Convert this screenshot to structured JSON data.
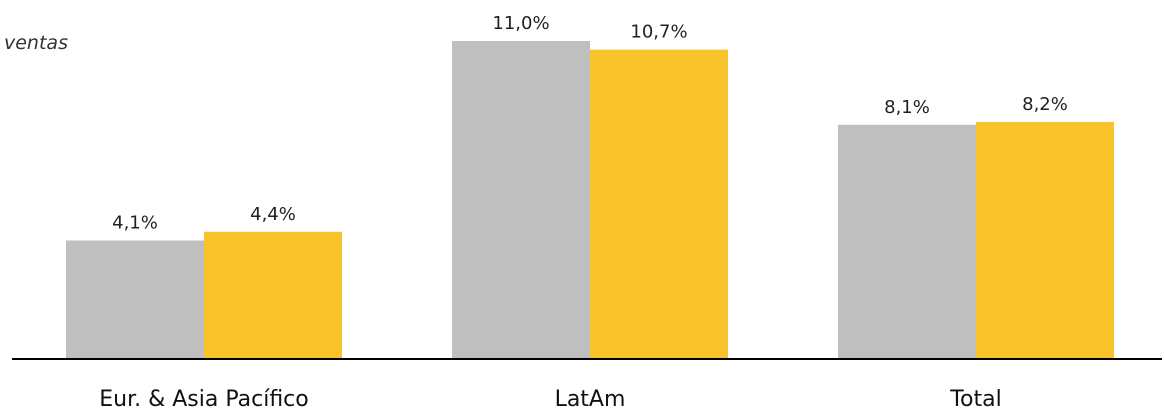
{
  "chart_data": {
    "type": "bar",
    "title": "ventas",
    "categories": [
      "Eur. & Asia Pacífico",
      "LatAm",
      "Total"
    ],
    "series": [
      {
        "values": [
          4.1,
          11.0,
          8.1
        ],
        "labels": [
          "4,1%",
          "11,0%",
          "8,1%"
        ],
        "color": "#BFBFBF"
      },
      {
        "values": [
          4.4,
          10.7,
          8.2
        ],
        "labels": [
          "4,4%",
          "10,7%",
          "8,2%"
        ],
        "color": "#F9C32B"
      }
    ],
    "ylim": [
      0,
      11.0
    ],
    "grid": false,
    "axis_color": "#000000"
  }
}
